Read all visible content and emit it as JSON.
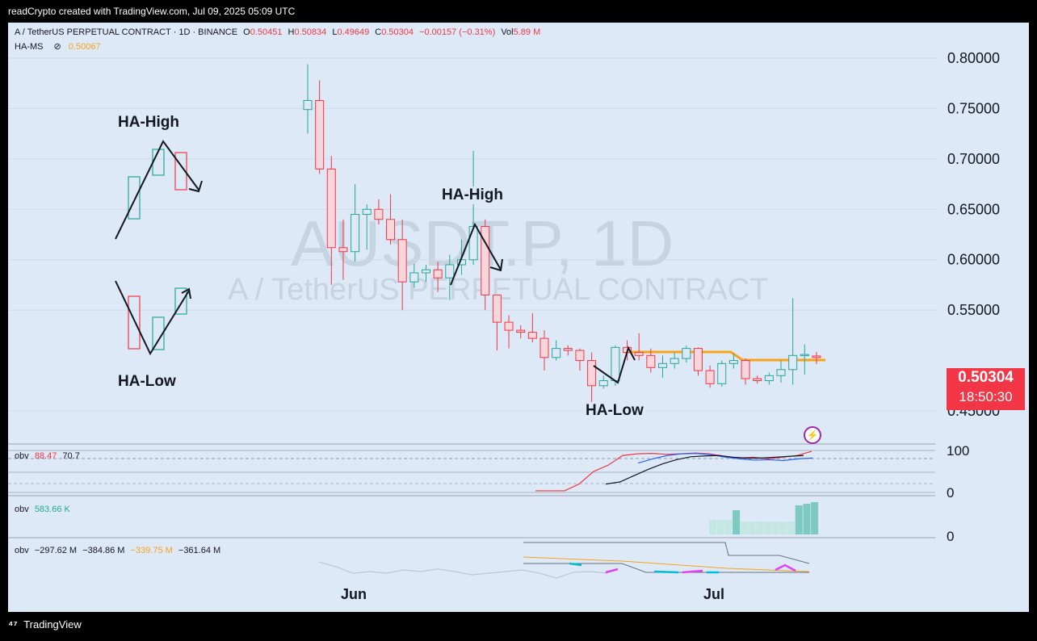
{
  "top_bar": {
    "text": "readCrypto created with TradingView.com, Jul 09, 2025 05:09 UTC"
  },
  "legend": {
    "symbol": "A / TetherUS PERPETUAL CONTRACT · 1D · BINANCE",
    "o_label": "O",
    "o": "0.50451",
    "h_label": "H",
    "h": "0.50834",
    "l_label": "L",
    "l": "0.49649",
    "c_label": "C",
    "c": "0.50304",
    "change": "−0.00157 (−0.31%)",
    "vol_label": "Vol",
    "vol": "5.89 M",
    "indicator": "HA-MS",
    "indicator_icon": "eye-off-icon",
    "indicator_value": "0.50067"
  },
  "watermark": {
    "ticker": "AUSDT.P, 1D",
    "name": "A / TetherUS PERPETUAL CONTRACT"
  },
  "price_tag": {
    "price": "0.50304",
    "countdown": "18:50:30",
    "color": "#f23645"
  },
  "annotations": {
    "ha_high_1": "HA-High",
    "ha_low_1": "HA-Low",
    "ha_high_2": "HA-High",
    "ha_low_2": "HA-Low"
  },
  "obv_panels": {
    "p1": {
      "label": "obv",
      "v1": "88.47",
      "v2": "70.7",
      "axis_top": "100",
      "axis_bottom": "0"
    },
    "p2": {
      "label": "obv",
      "v1": "583.66 K",
      "axis": "0"
    },
    "p3": {
      "label": "obv",
      "v1": "−297.62 M",
      "v2": "−384.86 M",
      "v3": "−339.75 M",
      "v4": "−361.64 M"
    }
  },
  "footer": {
    "brand": "TradingView",
    "logo_icon": "tradingview-logo-icon"
  },
  "chart_data": {
    "type": "candlestick",
    "price_axis": [
      "0.80000",
      "0.75000",
      "0.70000",
      "0.65000",
      "0.60000",
      "0.55000",
      "0.45000"
    ],
    "ylim": [
      0.43,
      0.82
    ],
    "x_labels": [
      "Jun",
      "Jul"
    ],
    "colors": {
      "up": "#26a69a",
      "down": "#f23645",
      "ha_ms": "#f7a21b"
    },
    "candles": [
      {
        "o": 0.749,
        "h": 0.794,
        "l": 0.725,
        "c": 0.758
      },
      {
        "o": 0.758,
        "h": 0.778,
        "l": 0.685,
        "c": 0.69
      },
      {
        "o": 0.69,
        "h": 0.703,
        "l": 0.575,
        "c": 0.612
      },
      {
        "o": 0.612,
        "h": 0.64,
        "l": 0.58,
        "c": 0.608
      },
      {
        "o": 0.608,
        "h": 0.675,
        "l": 0.598,
        "c": 0.645
      },
      {
        "o": 0.645,
        "h": 0.655,
        "l": 0.61,
        "c": 0.65
      },
      {
        "o": 0.65,
        "h": 0.66,
        "l": 0.635,
        "c": 0.64
      },
      {
        "o": 0.64,
        "h": 0.665,
        "l": 0.615,
        "c": 0.62
      },
      {
        "o": 0.62,
        "h": 0.64,
        "l": 0.55,
        "c": 0.578
      },
      {
        "o": 0.578,
        "h": 0.596,
        "l": 0.572,
        "c": 0.587
      },
      {
        "o": 0.587,
        "h": 0.595,
        "l": 0.578,
        "c": 0.59
      },
      {
        "o": 0.59,
        "h": 0.598,
        "l": 0.568,
        "c": 0.582
      },
      {
        "o": 0.582,
        "h": 0.605,
        "l": 0.56,
        "c": 0.595
      },
      {
        "o": 0.595,
        "h": 0.62,
        "l": 0.585,
        "c": 0.6
      },
      {
        "o": 0.6,
        "h": 0.708,
        "l": 0.595,
        "c": 0.633
      },
      {
        "o": 0.633,
        "h": 0.64,
        "l": 0.55,
        "c": 0.565
      },
      {
        "o": 0.565,
        "h": 0.565,
        "l": 0.51,
        "c": 0.538
      },
      {
        "o": 0.538,
        "h": 0.545,
        "l": 0.512,
        "c": 0.53
      },
      {
        "o": 0.53,
        "h": 0.535,
        "l": 0.522,
        "c": 0.528
      },
      {
        "o": 0.528,
        "h": 0.547,
        "l": 0.518,
        "c": 0.522
      },
      {
        "o": 0.522,
        "h": 0.53,
        "l": 0.49,
        "c": 0.503
      },
      {
        "o": 0.503,
        "h": 0.52,
        "l": 0.5,
        "c": 0.512
      },
      {
        "o": 0.512,
        "h": 0.515,
        "l": 0.505,
        "c": 0.51
      },
      {
        "o": 0.51,
        "h": 0.512,
        "l": 0.49,
        "c": 0.5
      },
      {
        "o": 0.5,
        "h": 0.508,
        "l": 0.453,
        "c": 0.475
      },
      {
        "o": 0.475,
        "h": 0.485,
        "l": 0.472,
        "c": 0.48
      },
      {
        "o": 0.48,
        "h": 0.515,
        "l": 0.475,
        "c": 0.513
      },
      {
        "o": 0.513,
        "h": 0.52,
        "l": 0.5,
        "c": 0.508
      },
      {
        "o": 0.508,
        "h": 0.527,
        "l": 0.5,
        "c": 0.505
      },
      {
        "o": 0.505,
        "h": 0.512,
        "l": 0.488,
        "c": 0.493
      },
      {
        "o": 0.493,
        "h": 0.505,
        "l": 0.483,
        "c": 0.497
      },
      {
        "o": 0.497,
        "h": 0.508,
        "l": 0.492,
        "c": 0.502
      },
      {
        "o": 0.502,
        "h": 0.515,
        "l": 0.498,
        "c": 0.512
      },
      {
        "o": 0.512,
        "h": 0.513,
        "l": 0.485,
        "c": 0.49
      },
      {
        "o": 0.49,
        "h": 0.495,
        "l": 0.473,
        "c": 0.477
      },
      {
        "o": 0.477,
        "h": 0.5,
        "l": 0.474,
        "c": 0.497
      },
      {
        "o": 0.497,
        "h": 0.507,
        "l": 0.492,
        "c": 0.5
      },
      {
        "o": 0.5,
        "h": 0.502,
        "l": 0.476,
        "c": 0.482
      },
      {
        "o": 0.482,
        "h": 0.485,
        "l": 0.477,
        "c": 0.48
      },
      {
        "o": 0.48,
        "h": 0.488,
        "l": 0.476,
        "c": 0.485
      },
      {
        "o": 0.485,
        "h": 0.5,
        "l": 0.478,
        "c": 0.491
      },
      {
        "o": 0.491,
        "h": 0.562,
        "l": 0.476,
        "c": 0.505
      },
      {
        "o": 0.505,
        "h": 0.516,
        "l": 0.486,
        "c": 0.506
      },
      {
        "o": 0.50451,
        "h": 0.50834,
        "l": 0.49649,
        "c": 0.50304
      }
    ],
    "ha_ms_line": [
      0.5085,
      0.5085,
      0.5085,
      0.5085,
      0.5085,
      0.5085,
      0.5085,
      0.5085,
      0.5085,
      0.5085,
      0.5005,
      0.5005,
      0.5005,
      0.5005,
      0.5005,
      0.5005,
      0.5005,
      0.5005
    ],
    "obv_panel1": {
      "axis": [
        0,
        100
      ],
      "red_line": [
        4,
        4,
        4,
        20,
        50,
        65,
        88,
        92,
        93,
        91,
        92,
        94,
        92,
        86,
        82,
        84,
        80,
        84,
        88,
        98
      ],
      "blue_line": [
        70,
        80,
        88,
        92,
        93,
        90,
        84,
        80,
        77,
        78,
        76,
        80,
        82
      ],
      "black_line": [
        20,
        25,
        40,
        55,
        68,
        78,
        85,
        87,
        88,
        84,
        82,
        82,
        84,
        86,
        88
      ]
    },
    "obv_panel2": {
      "bars": [
        0.45,
        0.45,
        0.45,
        0.75,
        0.4,
        0.4,
        0.4,
        0.4,
        0.4,
        0.4,
        0.4,
        0.9,
        0.95,
        1.0
      ]
    },
    "obv_panel3": {
      "grey_line": [
        0.5,
        0.35,
        0.15,
        0.2,
        0.15,
        0.25,
        0.2,
        0.28,
        0.2,
        0.1,
        0.15,
        0.2,
        0.25,
        0.15,
        0.0,
        0.18,
        0.2,
        0.15
      ],
      "upper_line": [
        0.0,
        0.0,
        0.0,
        0.0,
        0.0,
        0.0,
        0.0,
        0.0,
        0.7,
        0.7,
        0.7,
        0.8,
        0.8
      ],
      "orange_line": [
        0.1,
        0.2,
        0.3,
        0.4,
        0.5,
        0.6,
        0.7,
        0.72
      ],
      "dark_line": [
        0.3,
        0.3,
        0.35,
        0.4,
        0.55,
        0.65,
        0.7,
        0.7,
        0.7,
        0.6
      ]
    }
  }
}
